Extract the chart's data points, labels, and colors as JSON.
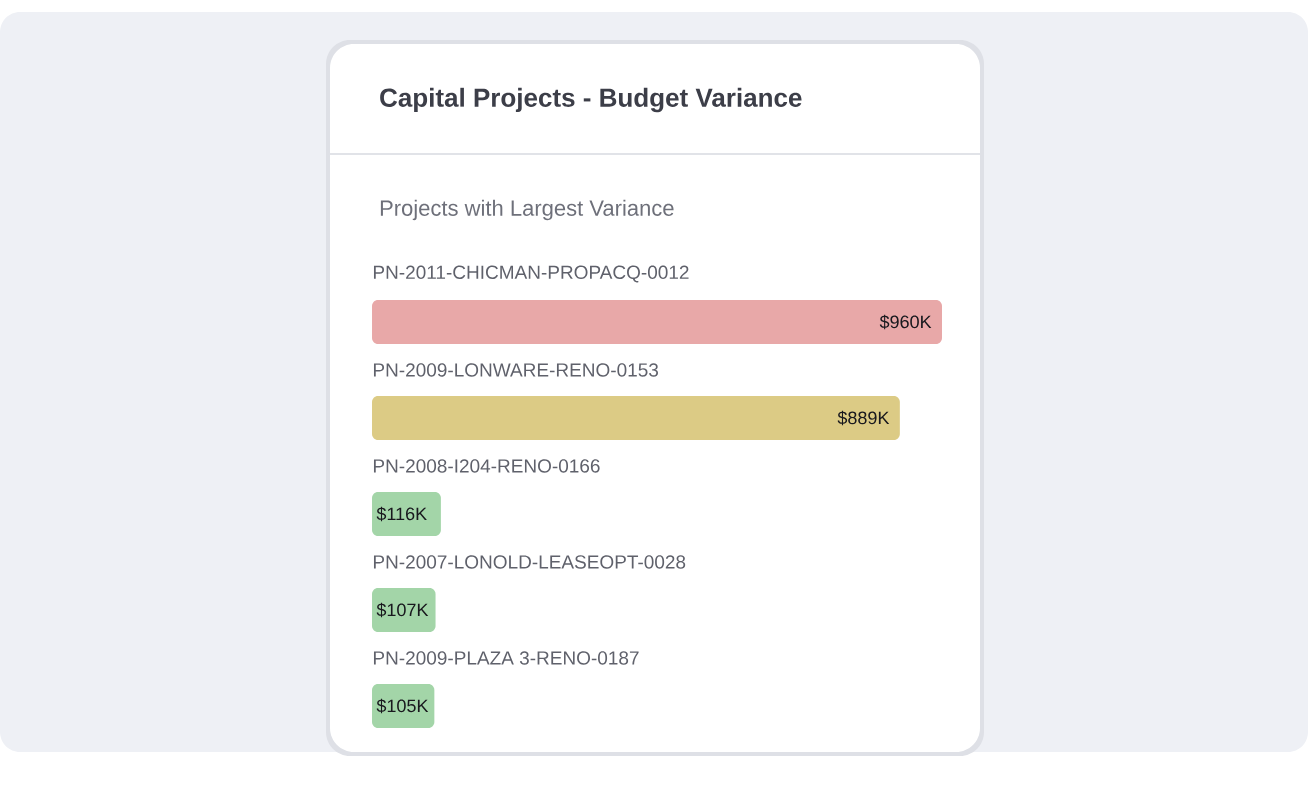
{
  "chart_data": {
    "type": "bar",
    "orientation": "horizontal",
    "title": "Capital Projects - Budget Variance",
    "subtitle": "Projects with Largest Variance",
    "categories": [
      "PN-2011-CHICMAN-PROPACQ-0012",
      "PN-2009-LONWARE-RENO-0153",
      "PN-2008-I204-RENO-0166",
      "PN-2007-LONOLD-LEASEOPT-0028",
      "PN-2009-PLAZA 3-RENO-0187"
    ],
    "values": [
      960,
      889,
      116,
      107,
      105
    ],
    "value_labels": [
      "$960K",
      "$889K",
      "$116K",
      "$107K",
      "$105K"
    ],
    "colors": [
      "#e8a8a8",
      "#dccb85",
      "#a3d5a8",
      "#a3d5a8",
      "#a3d5a8"
    ],
    "xlim": [
      0,
      960
    ]
  }
}
